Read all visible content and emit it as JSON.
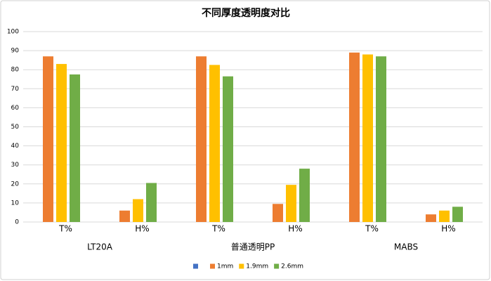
{
  "chart_data": {
    "type": "bar",
    "title": "不同厚度透明度对比",
    "categories": [
      "T%",
      "H%",
      "T%",
      "H%",
      "T%",
      "H%"
    ],
    "group_labels": [
      "LT20A",
      "普通透明PP",
      "MABS"
    ],
    "series": [
      {
        "color": "#4472c4",
        "values": [
          null,
          null,
          null,
          null,
          null,
          null
        ]
      },
      {
        "name": "1mm",
        "color": "#ed7d31",
        "values": [
          87,
          6,
          87,
          9.5,
          89,
          4
        ]
      },
      {
        "name": "1.9mm",
        "color": "#ffc000",
        "values": [
          83,
          12,
          82.5,
          19.5,
          88,
          6
        ]
      },
      {
        "name": "2.6mm",
        "color": "#70ad47",
        "values": [
          77.5,
          20.5,
          76.5,
          28,
          87,
          8
        ]
      }
    ],
    "ylim": [
      0,
      100
    ],
    "yticks": [
      0,
      10,
      20,
      30,
      40,
      50,
      60,
      70,
      80,
      90,
      100
    ],
    "grid": true,
    "legend": "bottom"
  }
}
